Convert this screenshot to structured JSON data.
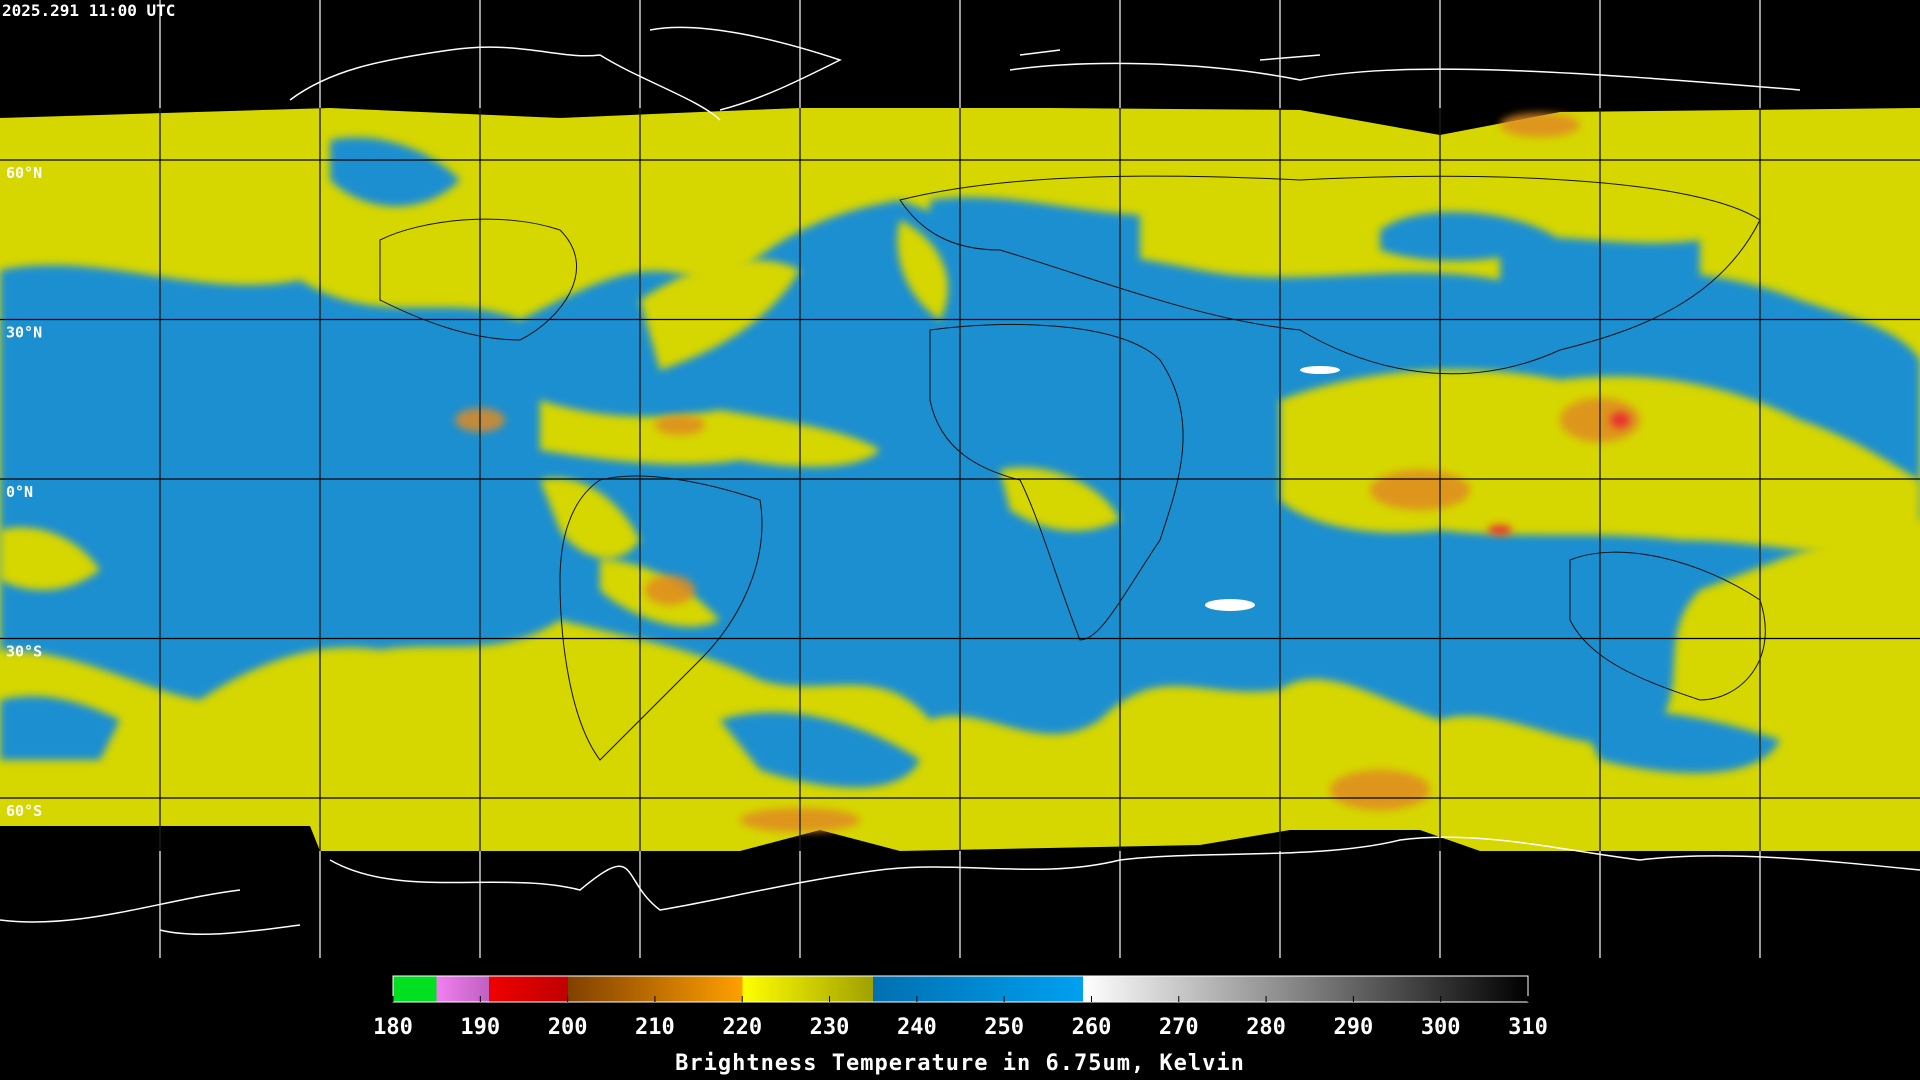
{
  "header": {
    "timestamp": "2025.291 11:00 UTC"
  },
  "map": {
    "lat_labels": [
      "60°N",
      "30°N",
      "0°N",
      "30°S",
      "60°S"
    ]
  },
  "colorbar": {
    "ticks": [
      180,
      190,
      200,
      210,
      220,
      230,
      240,
      250,
      260,
      270,
      280,
      290,
      300,
      310
    ],
    "title": "Brightness Temperature in 6.75um, Kelvin"
  }
}
